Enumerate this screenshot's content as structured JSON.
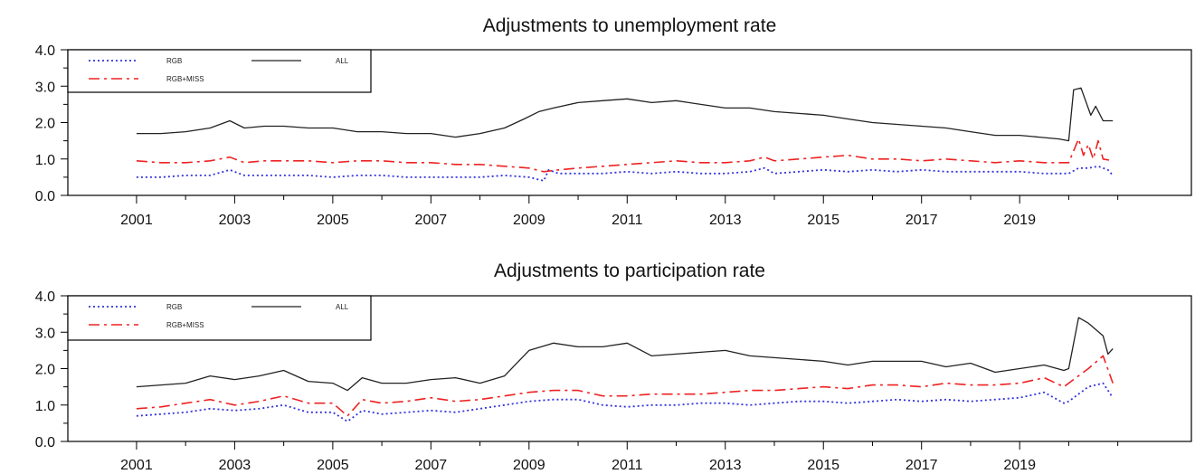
{
  "chart_data": [
    {
      "type": "line",
      "title": "Adjustments to unemployment rate",
      "xlabel": "",
      "ylabel": "",
      "xlim": [
        1999.6,
        2022.5
      ],
      "ylim": [
        0,
        4
      ],
      "y_ticks": [
        "0.0",
        "1.0",
        "2.0",
        "3.0",
        "4.0"
      ],
      "x_ticks": [
        "2001",
        "2003",
        "2005",
        "2007",
        "2009",
        "2011",
        "2013",
        "2015",
        "2017",
        "2019"
      ],
      "grid": false,
      "legend_position": "top-left",
      "series": [
        {
          "name": "RGB",
          "color": "#3333dd",
          "style": "dotted",
          "x": [
            2001.0,
            2001.5,
            2002.0,
            2002.5,
            2002.9,
            2003.2,
            2003.6,
            2004.0,
            2004.5,
            2005.0,
            2005.5,
            2006.0,
            2006.5,
            2007.0,
            2007.5,
            2008.0,
            2008.5,
            2009.0,
            2009.3,
            2009.4,
            2009.6,
            2010.0,
            2010.5,
            2011.0,
            2011.5,
            2012.0,
            2012.5,
            2013.0,
            2013.5,
            2013.8,
            2014.0,
            2014.5,
            2015.0,
            2015.5,
            2016.0,
            2016.5,
            2017.0,
            2017.5,
            2018.0,
            2018.5,
            2019.0,
            2019.5,
            2019.9,
            2020.0,
            2020.2,
            2020.4,
            2020.6,
            2020.8,
            2020.9
          ],
          "y": [
            0.5,
            0.5,
            0.55,
            0.55,
            0.7,
            0.55,
            0.55,
            0.55,
            0.55,
            0.5,
            0.55,
            0.55,
            0.5,
            0.5,
            0.5,
            0.5,
            0.55,
            0.5,
            0.4,
            0.7,
            0.6,
            0.6,
            0.6,
            0.65,
            0.6,
            0.65,
            0.6,
            0.6,
            0.65,
            0.75,
            0.6,
            0.65,
            0.7,
            0.65,
            0.7,
            0.65,
            0.7,
            0.65,
            0.65,
            0.65,
            0.65,
            0.6,
            0.6,
            0.6,
            0.75,
            0.75,
            0.8,
            0.7,
            0.55
          ]
        },
        {
          "name": "RGB+MISS",
          "color": "#ee2222",
          "style": "dash-dot",
          "x": [
            2001.0,
            2001.5,
            2002.0,
            2002.5,
            2002.9,
            2003.2,
            2003.6,
            2004.0,
            2004.5,
            2005.0,
            2005.5,
            2006.0,
            2006.5,
            2007.0,
            2007.5,
            2008.0,
            2008.5,
            2009.0,
            2009.3,
            2009.6,
            2010.0,
            2010.5,
            2011.0,
            2011.5,
            2012.0,
            2012.5,
            2013.0,
            2013.5,
            2013.8,
            2014.0,
            2014.5,
            2015.0,
            2015.5,
            2016.0,
            2016.5,
            2017.0,
            2017.5,
            2018.0,
            2018.5,
            2019.0,
            2019.5,
            2019.9,
            2020.0,
            2020.2,
            2020.3,
            2020.4,
            2020.5,
            2020.6,
            2020.7,
            2020.9
          ],
          "y": [
            0.95,
            0.9,
            0.9,
            0.95,
            1.05,
            0.9,
            0.95,
            0.95,
            0.95,
            0.9,
            0.95,
            0.95,
            0.9,
            0.9,
            0.85,
            0.85,
            0.8,
            0.75,
            0.65,
            0.7,
            0.75,
            0.8,
            0.85,
            0.9,
            0.95,
            0.9,
            0.9,
            0.95,
            1.05,
            0.95,
            1.0,
            1.05,
            1.1,
            1.0,
            1.0,
            0.95,
            1.0,
            0.95,
            0.9,
            0.95,
            0.9,
            0.9,
            0.9,
            1.55,
            1.1,
            1.4,
            1.0,
            1.5,
            1.0,
            0.95
          ]
        },
        {
          "name": "ALL",
          "color": "#222222",
          "style": "solid",
          "x": [
            2001.0,
            2001.5,
            2002.0,
            2002.5,
            2002.9,
            2003.2,
            2003.6,
            2004.0,
            2004.5,
            2005.0,
            2005.5,
            2006.0,
            2006.5,
            2007.0,
            2007.5,
            2008.0,
            2008.5,
            2008.9,
            2009.2,
            2009.5,
            2010.0,
            2010.5,
            2011.0,
            2011.5,
            2012.0,
            2012.5,
            2013.0,
            2013.5,
            2014.0,
            2014.5,
            2015.0,
            2015.5,
            2016.0,
            2016.5,
            2017.0,
            2017.5,
            2018.0,
            2018.5,
            2019.0,
            2019.4,
            2019.8,
            2020.0,
            2020.1,
            2020.25,
            2020.45,
            2020.55,
            2020.7,
            2020.9
          ],
          "y": [
            1.7,
            1.7,
            1.75,
            1.85,
            2.05,
            1.85,
            1.9,
            1.9,
            1.85,
            1.85,
            1.75,
            1.75,
            1.7,
            1.7,
            1.6,
            1.7,
            1.85,
            2.1,
            2.3,
            2.4,
            2.55,
            2.6,
            2.65,
            2.55,
            2.6,
            2.5,
            2.4,
            2.4,
            2.3,
            2.25,
            2.2,
            2.1,
            2.0,
            1.95,
            1.9,
            1.85,
            1.75,
            1.65,
            1.65,
            1.6,
            1.55,
            1.5,
            2.9,
            2.95,
            2.2,
            2.45,
            2.05,
            2.05
          ]
        }
      ]
    },
    {
      "type": "line",
      "title": "Adjustments to participation rate",
      "xlabel": "",
      "ylabel": "",
      "xlim": [
        1999.6,
        2022.5
      ],
      "ylim": [
        0,
        4
      ],
      "y_ticks": [
        "0.0",
        "1.0",
        "2.0",
        "3.0",
        "4.0"
      ],
      "x_ticks": [
        "2001",
        "2003",
        "2005",
        "2007",
        "2009",
        "2011",
        "2013",
        "2015",
        "2017",
        "2019"
      ],
      "grid": false,
      "legend_position": "top-left",
      "series": [
        {
          "name": "RGB",
          "color": "#3333dd",
          "style": "dotted",
          "x": [
            2001.0,
            2001.5,
            2002.0,
            2002.5,
            2003.0,
            2003.5,
            2004.0,
            2004.5,
            2005.0,
            2005.3,
            2005.6,
            2006.0,
            2006.5,
            2007.0,
            2007.5,
            2008.0,
            2008.5,
            2009.0,
            2009.5,
            2010.0,
            2010.5,
            2011.0,
            2011.5,
            2012.0,
            2012.5,
            2013.0,
            2013.5,
            2014.0,
            2014.5,
            2015.0,
            2015.5,
            2016.0,
            2016.5,
            2017.0,
            2017.5,
            2018.0,
            2018.5,
            2019.0,
            2019.5,
            2019.9,
            2020.0,
            2020.4,
            2020.7,
            2020.9
          ],
          "y": [
            0.7,
            0.75,
            0.8,
            0.9,
            0.85,
            0.9,
            1.0,
            0.8,
            0.8,
            0.55,
            0.85,
            0.75,
            0.8,
            0.85,
            0.8,
            0.9,
            1.0,
            1.1,
            1.15,
            1.15,
            1.0,
            0.95,
            1.0,
            1.0,
            1.05,
            1.05,
            1.0,
            1.05,
            1.1,
            1.1,
            1.05,
            1.1,
            1.15,
            1.1,
            1.15,
            1.1,
            1.15,
            1.2,
            1.35,
            1.05,
            1.1,
            1.5,
            1.6,
            1.2
          ]
        },
        {
          "name": "RGB+MISS",
          "color": "#ee2222",
          "style": "dash-dot",
          "x": [
            2001.0,
            2001.5,
            2002.0,
            2002.5,
            2003.0,
            2003.5,
            2004.0,
            2004.5,
            2005.0,
            2005.3,
            2005.6,
            2006.0,
            2006.5,
            2007.0,
            2007.5,
            2008.0,
            2008.5,
            2009.0,
            2009.5,
            2010.0,
            2010.5,
            2011.0,
            2011.5,
            2012.0,
            2012.5,
            2013.0,
            2013.5,
            2014.0,
            2014.5,
            2015.0,
            2015.5,
            2016.0,
            2016.5,
            2017.0,
            2017.5,
            2018.0,
            2018.5,
            2019.0,
            2019.5,
            2019.9,
            2020.0,
            2020.4,
            2020.7,
            2020.9
          ],
          "y": [
            0.9,
            0.95,
            1.05,
            1.15,
            1.0,
            1.1,
            1.25,
            1.05,
            1.05,
            0.7,
            1.15,
            1.05,
            1.1,
            1.2,
            1.1,
            1.15,
            1.25,
            1.35,
            1.4,
            1.4,
            1.25,
            1.25,
            1.3,
            1.3,
            1.3,
            1.35,
            1.4,
            1.4,
            1.45,
            1.5,
            1.45,
            1.55,
            1.55,
            1.5,
            1.6,
            1.55,
            1.55,
            1.6,
            1.75,
            1.5,
            1.6,
            2.0,
            2.35,
            1.6
          ]
        },
        {
          "name": "ALL",
          "color": "#222222",
          "style": "solid",
          "x": [
            2001.0,
            2001.5,
            2002.0,
            2002.5,
            2003.0,
            2003.5,
            2004.0,
            2004.5,
            2005.0,
            2005.3,
            2005.6,
            2006.0,
            2006.5,
            2007.0,
            2007.5,
            2008.0,
            2008.5,
            2009.0,
            2009.5,
            2010.0,
            2010.5,
            2011.0,
            2011.5,
            2012.0,
            2012.5,
            2013.0,
            2013.5,
            2014.0,
            2014.5,
            2015.0,
            2015.5,
            2016.0,
            2016.5,
            2017.0,
            2017.5,
            2018.0,
            2018.5,
            2019.0,
            2019.5,
            2019.9,
            2020.0,
            2020.2,
            2020.4,
            2020.7,
            2020.8,
            2020.9
          ],
          "y": [
            1.5,
            1.55,
            1.6,
            1.8,
            1.7,
            1.8,
            1.95,
            1.65,
            1.6,
            1.4,
            1.75,
            1.6,
            1.6,
            1.7,
            1.75,
            1.6,
            1.8,
            2.5,
            2.7,
            2.6,
            2.6,
            2.7,
            2.35,
            2.4,
            2.45,
            2.5,
            2.35,
            2.3,
            2.25,
            2.2,
            2.1,
            2.2,
            2.2,
            2.2,
            2.05,
            2.15,
            1.9,
            2.0,
            2.1,
            1.95,
            2.0,
            3.4,
            3.25,
            2.9,
            2.4,
            2.55
          ]
        }
      ]
    }
  ]
}
